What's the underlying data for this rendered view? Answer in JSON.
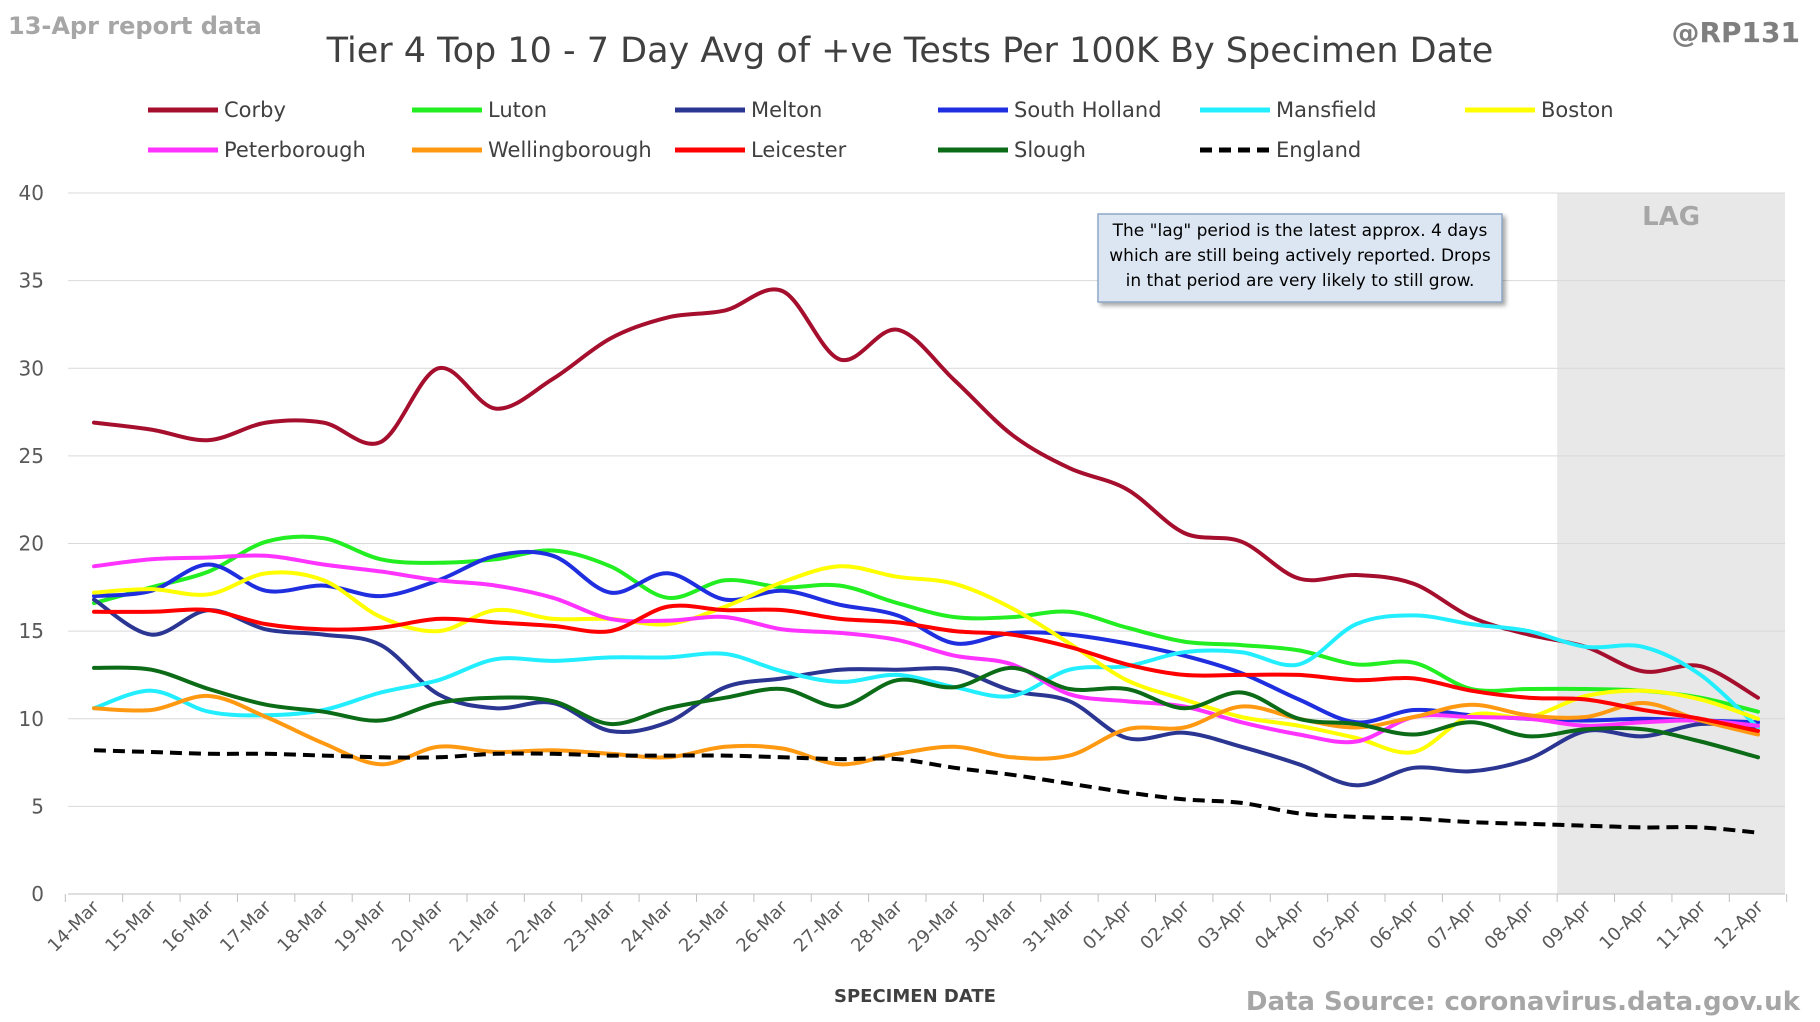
{
  "header": {
    "report_date": "13-Apr report data",
    "handle": "@RP131",
    "title": "Tier 4 Top 10 - 7 Day Avg of +ve Tests Per 100K By Specimen Date"
  },
  "annotation": {
    "lines": [
      "The \"lag\" period is the latest approx. 4 days",
      "which are still being actively reported.  Drops",
      "in that period are very likely to still grow."
    ]
  },
  "lag_label": "LAG",
  "footer": {
    "source": "Data Source: coronavirus.data.gov.uk"
  },
  "chart_data": {
    "type": "line",
    "title": "Tier 4 Top 10 - 7 Day Avg of +ve Tests Per 100K By Specimen Date",
    "xlabel": "SPECIMEN DATE",
    "ylabel": "",
    "ylim": [
      0,
      40
    ],
    "yticks": [
      0,
      5,
      10,
      15,
      20,
      25,
      30,
      35,
      40
    ],
    "grid": true,
    "legend_position": "top",
    "lag_range": [
      "09-Apr",
      "12-Apr"
    ],
    "x": [
      "14-Mar",
      "15-Mar",
      "16-Mar",
      "17-Mar",
      "18-Mar",
      "19-Mar",
      "20-Mar",
      "21-Mar",
      "22-Mar",
      "23-Mar",
      "24-Mar",
      "25-Mar",
      "26-Mar",
      "27-Mar",
      "28-Mar",
      "29-Mar",
      "30-Mar",
      "31-Mar",
      "01-Apr",
      "02-Apr",
      "03-Apr",
      "04-Apr",
      "05-Apr",
      "06-Apr",
      "07-Apr",
      "08-Apr",
      "09-Apr",
      "10-Apr",
      "11-Apr",
      "12-Apr"
    ],
    "series": [
      {
        "name": "Corby",
        "color": "#A50F2D",
        "dash": false,
        "values": [
          26.9,
          26.5,
          25.9,
          26.9,
          26.9,
          25.8,
          30.0,
          27.7,
          29.4,
          31.7,
          32.9,
          33.3,
          34.4,
          30.5,
          32.2,
          29.3,
          26.2,
          24.3,
          23.1,
          20.6,
          20.1,
          18.0,
          18.2,
          17.7,
          15.8,
          14.8,
          14.1,
          12.7,
          13.0,
          11.2
        ]
      },
      {
        "name": "Luton",
        "color": "#22EE22",
        "dash": false,
        "values": [
          16.6,
          17.5,
          18.4,
          20.1,
          20.3,
          19.1,
          18.9,
          19.1,
          19.6,
          18.7,
          16.9,
          17.9,
          17.5,
          17.6,
          16.6,
          15.8,
          15.8,
          16.1,
          15.2,
          14.4,
          14.2,
          13.9,
          13.1,
          13.2,
          11.7,
          11.7,
          11.7,
          11.6,
          11.2,
          10.4
        ]
      },
      {
        "name": "Melton",
        "color": "#2B3592",
        "dash": false,
        "values": [
          16.8,
          14.8,
          16.2,
          15.1,
          14.8,
          14.2,
          11.4,
          10.6,
          10.9,
          9.3,
          9.8,
          11.8,
          12.3,
          12.8,
          12.8,
          12.8,
          11.6,
          11.0,
          8.9,
          9.2,
          8.4,
          7.4,
          6.2,
          7.2,
          7.0,
          7.7,
          9.3,
          9.0,
          9.7,
          9.5
        ]
      },
      {
        "name": "South Holland",
        "color": "#1F2FE0",
        "dash": false,
        "values": [
          17.0,
          17.3,
          18.8,
          17.3,
          17.6,
          17.0,
          17.9,
          19.3,
          19.3,
          17.2,
          18.3,
          16.8,
          17.3,
          16.5,
          15.9,
          14.3,
          14.9,
          14.8,
          14.3,
          13.6,
          12.6,
          11.1,
          9.8,
          10.5,
          10.2,
          10.0,
          9.9,
          10.0,
          9.9,
          9.8
        ]
      },
      {
        "name": "Mansfield",
        "color": "#22EEFF",
        "dash": false,
        "values": [
          10.6,
          11.6,
          10.4,
          10.2,
          10.5,
          11.5,
          12.2,
          13.4,
          13.3,
          13.5,
          13.5,
          13.7,
          12.7,
          12.1,
          12.5,
          11.8,
          11.3,
          12.8,
          13.0,
          13.8,
          13.8,
          13.1,
          15.4,
          15.9,
          15.4,
          15.0,
          14.1,
          14.1,
          12.5,
          9.5
        ]
      },
      {
        "name": "Boston",
        "color": "#FFFF00",
        "dash": false,
        "values": [
          17.2,
          17.4,
          17.1,
          18.3,
          17.9,
          15.8,
          15.0,
          16.2,
          15.7,
          15.7,
          15.4,
          16.4,
          17.8,
          18.7,
          18.1,
          17.7,
          16.3,
          14.3,
          12.2,
          11.1,
          10.1,
          9.6,
          8.9,
          8.1,
          10.2,
          10.1,
          11.3,
          11.6,
          11.1,
          10.0
        ]
      },
      {
        "name": "Peterborough",
        "color": "#FF33FF",
        "dash": false,
        "values": [
          18.7,
          19.1,
          19.2,
          19.3,
          18.8,
          18.4,
          17.9,
          17.6,
          16.9,
          15.7,
          15.6,
          15.8,
          15.1,
          14.9,
          14.5,
          13.6,
          13.1,
          11.4,
          11.0,
          10.7,
          9.8,
          9.1,
          8.7,
          10.1,
          10.1,
          10.0,
          9.6,
          9.8,
          9.9,
          9.6
        ]
      },
      {
        "name": "Wellingborough",
        "color": "#FF9912",
        "dash": false,
        "values": [
          10.6,
          10.5,
          11.3,
          10.1,
          8.6,
          7.4,
          8.4,
          8.1,
          8.2,
          8.0,
          7.8,
          8.4,
          8.3,
          7.4,
          8.0,
          8.4,
          7.8,
          7.9,
          9.4,
          9.5,
          10.7,
          10.0,
          9.5,
          10.1,
          10.8,
          10.2,
          10.1,
          10.9,
          9.9,
          9.1
        ]
      },
      {
        "name": "Leicester",
        "color": "#FF0000",
        "dash": false,
        "values": [
          16.1,
          16.1,
          16.2,
          15.4,
          15.1,
          15.2,
          15.7,
          15.5,
          15.3,
          15.0,
          16.4,
          16.2,
          16.2,
          15.7,
          15.5,
          15.0,
          14.8,
          14.1,
          13.1,
          12.5,
          12.5,
          12.5,
          12.2,
          12.3,
          11.6,
          11.2,
          11.1,
          10.5,
          10.0,
          9.3
        ]
      },
      {
        "name": "Slough",
        "color": "#0B6B17",
        "dash": false,
        "values": [
          12.9,
          12.8,
          11.7,
          10.8,
          10.4,
          9.9,
          10.9,
          11.2,
          11.0,
          9.7,
          10.6,
          11.2,
          11.7,
          10.7,
          12.2,
          11.8,
          12.9,
          11.7,
          11.7,
          10.6,
          11.5,
          10.0,
          9.7,
          9.1,
          9.8,
          9.0,
          9.4,
          9.4,
          8.7,
          7.8
        ]
      },
      {
        "name": "England",
        "color": "#000000",
        "dash": true,
        "values": [
          8.2,
          8.1,
          8.0,
          8.0,
          7.9,
          7.8,
          7.8,
          8.0,
          8.0,
          7.9,
          7.9,
          7.9,
          7.8,
          7.7,
          7.7,
          7.2,
          6.8,
          6.3,
          5.8,
          5.4,
          5.2,
          4.6,
          4.4,
          4.3,
          4.1,
          4.0,
          3.9,
          3.8,
          3.8,
          3.5
        ]
      }
    ]
  }
}
